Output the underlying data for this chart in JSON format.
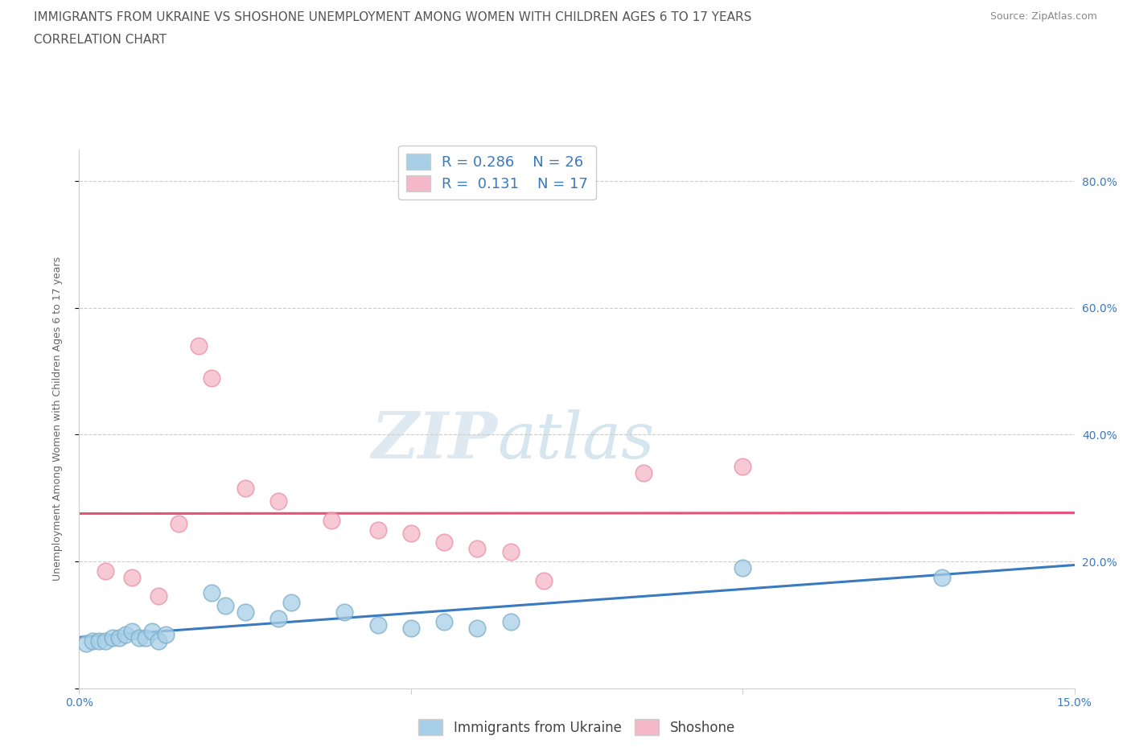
{
  "title_line1": "IMMIGRANTS FROM UKRAINE VS SHOSHONE UNEMPLOYMENT AMONG WOMEN WITH CHILDREN AGES 6 TO 17 YEARS",
  "title_line2": "CORRELATION CHART",
  "source_text": "Source: ZipAtlas.com",
  "ylabel": "Unemployment Among Women with Children Ages 6 to 17 years",
  "watermark_zip": "ZIP",
  "watermark_atlas": "atlas",
  "xlim": [
    0.0,
    0.15
  ],
  "ylim": [
    0.0,
    0.85
  ],
  "blue_color": "#a8cfe8",
  "pink_color": "#f4b8c8",
  "blue_edge_color": "#7aaec8",
  "pink_edge_color": "#e890a8",
  "blue_line_color": "#3a7abf",
  "pink_line_color": "#e8507a",
  "label_blue": "Immigrants from Ukraine",
  "label_pink": "Shoshone",
  "legend_text_color": "#3a7abf",
  "ukraine_x": [
    0.001,
    0.002,
    0.003,
    0.004,
    0.005,
    0.006,
    0.007,
    0.008,
    0.009,
    0.01,
    0.011,
    0.012,
    0.013,
    0.02,
    0.022,
    0.025,
    0.03,
    0.032,
    0.04,
    0.045,
    0.05,
    0.055,
    0.06,
    0.065,
    0.1,
    0.13
  ],
  "ukraine_y": [
    0.07,
    0.075,
    0.075,
    0.075,
    0.08,
    0.08,
    0.085,
    0.09,
    0.08,
    0.08,
    0.09,
    0.075,
    0.085,
    0.15,
    0.13,
    0.12,
    0.11,
    0.135,
    0.12,
    0.1,
    0.095,
    0.105,
    0.095,
    0.105,
    0.19,
    0.175
  ],
  "shoshone_x": [
    0.004,
    0.008,
    0.012,
    0.015,
    0.018,
    0.02,
    0.025,
    0.03,
    0.038,
    0.045,
    0.05,
    0.055,
    0.06,
    0.065,
    0.07,
    0.085,
    0.1
  ],
  "shoshone_y": [
    0.185,
    0.175,
    0.145,
    0.26,
    0.54,
    0.49,
    0.315,
    0.295,
    0.265,
    0.25,
    0.245,
    0.23,
    0.22,
    0.215,
    0.17,
    0.34,
    0.35
  ],
  "title_fontsize": 11,
  "axis_label_fontsize": 9,
  "tick_fontsize": 10
}
